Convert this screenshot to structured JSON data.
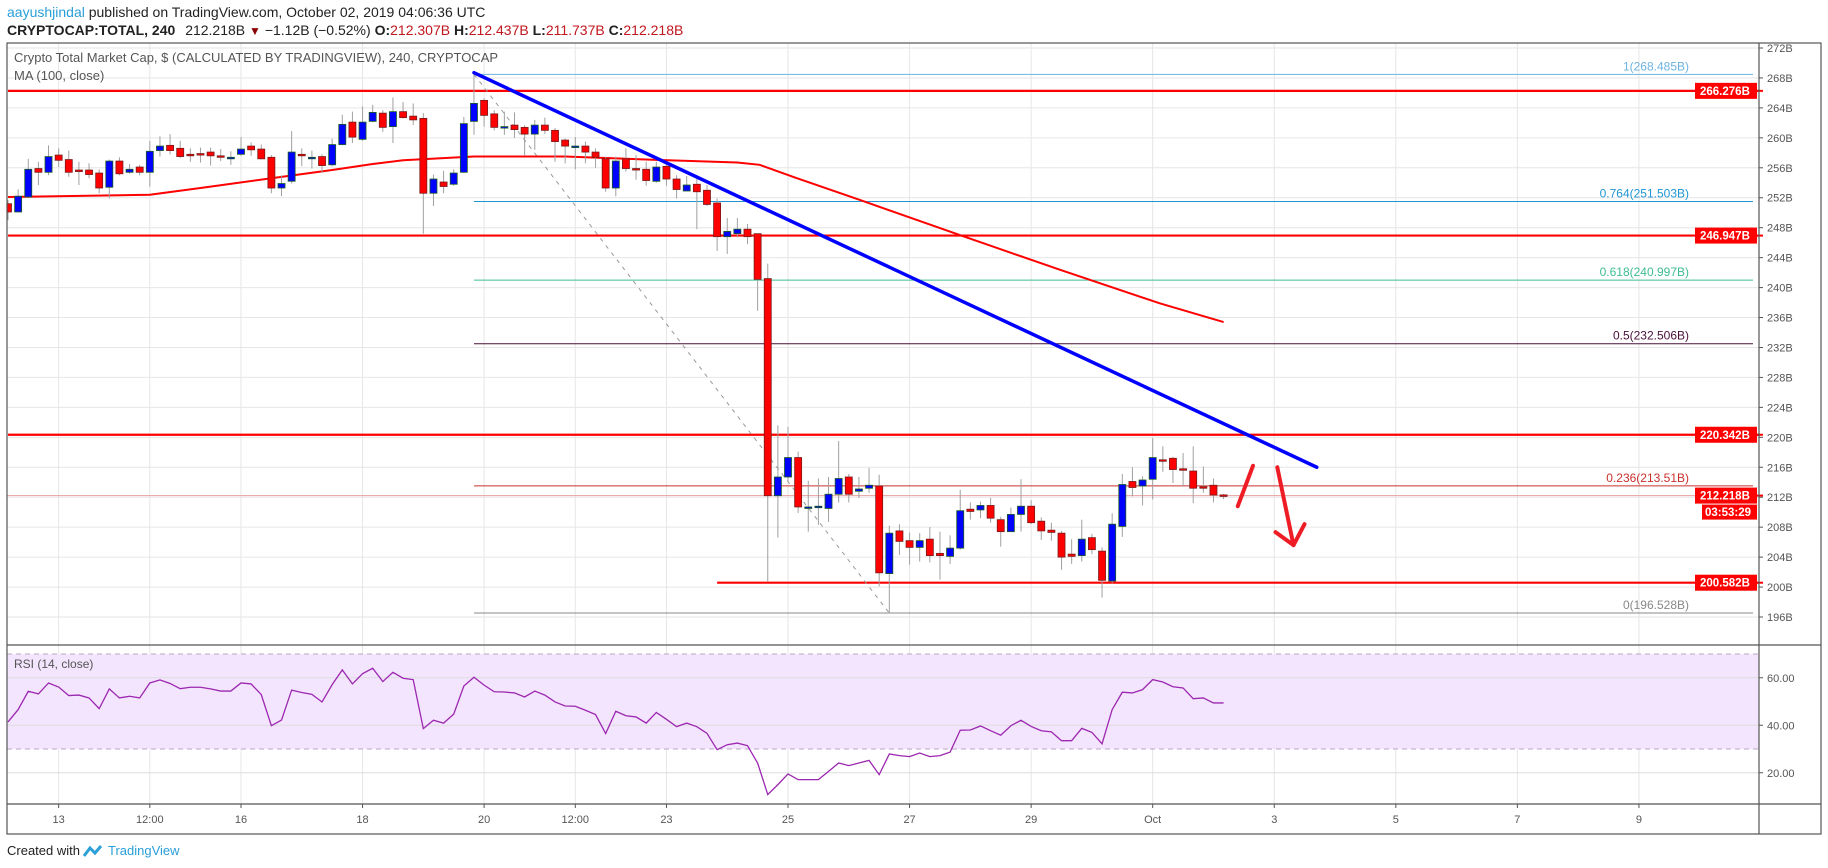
{
  "header": {
    "author": "aayushjindal",
    "published": "published on TradingView.com, October 02, 2019 04:06:36 UTC",
    "symbol": "CRYPTOCAP:TOTAL, 240",
    "last": "212.218B",
    "change": "−1.12B (−0.52%)",
    "o_label": "O:",
    "o": "212.307B",
    "h_label": "H:",
    "h": "212.437B",
    "l_label": "L:",
    "l": "211.737B",
    "c_label": "C:",
    "c": "212.218B"
  },
  "legend": {
    "title": "Crypto Total Market Cap, $ (CALCULATED BY TRADINGVIEW), 240, CRYPTOCAP",
    "ma": "MA (100, close)",
    "rsi": "RSI (14, close)"
  },
  "footer": {
    "created_with": "Created with",
    "brand": "TradingView"
  },
  "colors": {
    "up": "#0000ff",
    "down": "#ff0000",
    "ma": "#ff0000",
    "trend": "#0000ff",
    "rsi": "#9c27b0",
    "level": "#ff0000"
  },
  "chart_data": {
    "type": "candlestick",
    "price_axis": {
      "ticks": [
        272,
        268,
        264,
        260,
        256,
        252,
        248,
        244,
        240,
        236,
        232,
        228,
        224,
        220,
        216,
        212,
        208,
        204,
        200,
        196
      ],
      "suffix": "B"
    },
    "rsi_axis": {
      "ticks": [
        60,
        40,
        20
      ],
      "band": [
        30,
        70
      ]
    },
    "time_labels": [
      {
        "label": "13",
        "bar": 5
      },
      {
        "label": "12:00",
        "bar": 14
      },
      {
        "label": "16",
        "bar": 23
      },
      {
        "label": "18",
        "bar": 35
      },
      {
        "label": "20",
        "bar": 47
      },
      {
        "label": "12:00",
        "bar": 56
      },
      {
        "label": "23",
        "bar": 65
      },
      {
        "label": "25",
        "bar": 77
      },
      {
        "label": "27",
        "bar": 89
      },
      {
        "label": "29",
        "bar": 101
      },
      {
        "label": "Oct",
        "bar": 113
      },
      {
        "label": "3",
        "bar": 125
      },
      {
        "label": "5",
        "bar": 137
      },
      {
        "label": "7",
        "bar": 149
      },
      {
        "label": "9",
        "bar": 161
      }
    ],
    "candles_ohlc": [
      [
        251.2,
        251.7,
        249.0,
        250.1
      ],
      [
        250.1,
        253.1,
        250.1,
        252.2
      ],
      [
        252.1,
        257.2,
        252.1,
        255.8
      ],
      [
        255.9,
        256.8,
        253.7,
        255.4
      ],
      [
        255.4,
        259.0,
        255.0,
        257.5
      ],
      [
        257.7,
        258.6,
        256.1,
        257.0
      ],
      [
        257.1,
        258.3,
        254.8,
        255.4
      ],
      [
        255.7,
        256.8,
        253.7,
        255.5
      ],
      [
        255.7,
        256.6,
        254.6,
        255.1
      ],
      [
        255.3,
        255.8,
        252.6,
        253.3
      ],
      [
        253.4,
        257.1,
        251.9,
        256.9
      ],
      [
        256.9,
        257.4,
        255.0,
        255.2
      ],
      [
        255.4,
        256.5,
        255.2,
        255.8
      ],
      [
        256.1,
        256.4,
        255.0,
        255.4
      ],
      [
        255.4,
        259.6,
        253.5,
        258.2
      ],
      [
        258.3,
        260.2,
        257.5,
        258.9
      ],
      [
        259.0,
        260.5,
        257.8,
        258.3
      ],
      [
        258.6,
        259.6,
        257.3,
        257.5
      ],
      [
        257.8,
        258.6,
        256.8,
        257.7
      ],
      [
        257.9,
        258.7,
        256.7,
        257.8
      ],
      [
        258.1,
        258.7,
        256.3,
        257.6
      ],
      [
        257.6,
        258.5,
        256.9,
        257.4
      ],
      [
        257.4,
        258.2,
        256.4,
        257.4
      ],
      [
        257.8,
        260.1,
        257.6,
        258.5
      ],
      [
        258.9,
        259.4,
        257.6,
        258.4
      ],
      [
        258.5,
        259.1,
        257.1,
        257.2
      ],
      [
        257.4,
        257.7,
        252.6,
        253.3
      ],
      [
        253.3,
        255.0,
        252.2,
        253.9
      ],
      [
        254.2,
        260.9,
        253.9,
        258.1
      ],
      [
        257.8,
        258.6,
        256.2,
        257.7
      ],
      [
        257.4,
        258.3,
        255.9,
        257.4
      ],
      [
        257.5,
        257.8,
        255.3,
        256.3
      ],
      [
        256.4,
        259.9,
        256.2,
        259.1
      ],
      [
        259.1,
        263.1,
        259.0,
        261.8
      ],
      [
        262.1,
        263.5,
        259.3,
        260.1
      ],
      [
        259.8,
        264.2,
        259.6,
        262.1
      ],
      [
        262.2,
        264.4,
        262.1,
        263.4
      ],
      [
        263.3,
        263.7,
        260.8,
        261.4
      ],
      [
        261.5,
        265.4,
        259.3,
        263.5
      ],
      [
        263.5,
        264.8,
        262.6,
        262.7
      ],
      [
        262.9,
        264.6,
        261.7,
        262.4
      ],
      [
        262.6,
        263.3,
        247.2,
        252.6
      ],
      [
        252.6,
        255.1,
        250.9,
        254.5
      ],
      [
        254.1,
        255.6,
        252.6,
        253.5
      ],
      [
        253.8,
        255.8,
        253.6,
        255.3
      ],
      [
        255.4,
        262.8,
        255.3,
        261.9
      ],
      [
        262.2,
        268.485,
        260.4,
        264.6
      ],
      [
        265.0,
        265.3,
        261.5,
        263.0
      ],
      [
        263.2,
        263.7,
        261.0,
        261.4
      ],
      [
        261.5,
        263.5,
        260.4,
        261.5
      ],
      [
        261.7,
        263.4,
        260.0,
        261.1
      ],
      [
        261.4,
        261.7,
        257.6,
        260.5
      ],
      [
        260.5,
        262.4,
        258.4,
        261.7
      ],
      [
        261.7,
        262.7,
        260.5,
        261.0
      ],
      [
        261.0,
        261.3,
        256.8,
        259.5
      ],
      [
        259.7,
        259.9,
        256.6,
        258.9
      ],
      [
        258.9,
        260.1,
        255.8,
        258.9
      ],
      [
        258.9,
        259.5,
        256.6,
        258.1
      ],
      [
        258.1,
        258.6,
        256.0,
        257.4
      ],
      [
        257.2,
        257.5,
        252.8,
        253.3
      ],
      [
        253.3,
        257.5,
        252.2,
        256.9
      ],
      [
        257.2,
        258.6,
        255.5,
        255.9
      ],
      [
        255.9,
        257.7,
        254.4,
        255.7
      ],
      [
        255.8,
        256.8,
        253.6,
        254.3
      ],
      [
        254.2,
        256.8,
        254.0,
        256.1
      ],
      [
        256.2,
        256.6,
        253.6,
        254.5
      ],
      [
        254.5,
        255.0,
        251.9,
        253.1
      ],
      [
        252.9,
        254.9,
        252.9,
        253.7
      ],
      [
        253.8,
        255.0,
        247.8,
        252.8
      ],
      [
        253.0,
        253.7,
        250.9,
        251.1
      ],
      [
        251.3,
        251.9,
        244.9,
        246.8
      ],
      [
        246.8,
        249.3,
        244.5,
        247.5
      ],
      [
        247.2,
        249.3,
        246.7,
        247.8
      ],
      [
        247.8,
        248.5,
        245.8,
        246.8
      ],
      [
        247.2,
        247.2,
        236.9,
        241.1
      ],
      [
        241.2,
        243.2,
        200.7,
        212.2
      ],
      [
        212.2,
        221.6,
        206.6,
        214.7
      ],
      [
        214.7,
        221.4,
        214.1,
        217.3
      ],
      [
        217.3,
        218.1,
        209.9,
        210.7
      ],
      [
        210.6,
        214.2,
        207.4,
        210.7
      ],
      [
        210.8,
        214.5,
        208.3,
        210.8
      ],
      [
        210.5,
        214.7,
        208.7,
        212.4
      ],
      [
        212.4,
        219.5,
        211.3,
        214.5
      ],
      [
        214.7,
        215.1,
        211.3,
        212.4
      ],
      [
        212.8,
        214.7,
        211.9,
        213.1
      ],
      [
        213.2,
        215.9,
        212.6,
        213.6
      ],
      [
        213.5,
        215.0,
        200.1,
        201.9
      ],
      [
        201.8,
        208.2,
        196.528,
        207.2
      ],
      [
        207.5,
        208.4,
        204.3,
        206.1
      ],
      [
        206.2,
        207.3,
        203.0,
        205.3
      ],
      [
        205.3,
        207.2,
        203.4,
        206.2
      ],
      [
        206.4,
        208.0,
        203.3,
        204.2
      ],
      [
        204.5,
        207.4,
        201.0,
        204.2
      ],
      [
        204.1,
        206.9,
        203.1,
        205.2
      ],
      [
        205.2,
        213.0,
        205.0,
        210.2
      ],
      [
        210.4,
        211.3,
        209.0,
        210.1
      ],
      [
        210.3,
        211.4,
        209.2,
        210.9
      ],
      [
        210.9,
        211.9,
        208.6,
        209.2
      ],
      [
        209.0,
        209.4,
        205.4,
        207.4
      ],
      [
        207.4,
        210.6,
        207.4,
        209.7
      ],
      [
        209.7,
        214.4,
        207.4,
        210.8
      ],
      [
        210.8,
        211.6,
        208.4,
        208.6
      ],
      [
        208.8,
        209.3,
        206.3,
        207.5
      ],
      [
        207.6,
        208.6,
        206.2,
        207.3
      ],
      [
        207.2,
        207.5,
        202.3,
        204.0
      ],
      [
        204.4,
        206.4,
        203.1,
        204.1
      ],
      [
        204.2,
        209.0,
        203.4,
        206.4
      ],
      [
        206.6,
        207.1,
        204.4,
        205.0
      ],
      [
        204.8,
        205.3,
        198.6,
        200.9
      ],
      [
        200.8,
        209.85,
        200.5,
        208.4
      ],
      [
        208.1,
        215.1,
        206.7,
        213.7
      ],
      [
        214.1,
        216.0,
        212.1,
        213.3
      ],
      [
        213.5,
        214.8,
        210.9,
        214.3
      ],
      [
        214.4,
        219.9,
        211.7,
        217.3
      ],
      [
        217.0,
        218.8,
        215.4,
        216.9
      ],
      [
        217.2,
        217.4,
        213.9,
        215.7
      ],
      [
        215.8,
        217.9,
        213.4,
        215.6
      ],
      [
        215.5,
        218.8,
        211.2,
        213.2
      ],
      [
        213.4,
        216.1,
        212.6,
        213.3
      ],
      [
        213.6,
        214.5,
        211.3,
        212.3
      ],
      [
        212.307,
        212.437,
        211.737,
        212.218
      ]
    ],
    "ma100": [
      [
        0,
        252.1
      ],
      [
        14,
        252.4
      ],
      [
        19,
        253.3
      ],
      [
        26,
        254.6
      ],
      [
        32,
        255.7
      ],
      [
        36,
        256.5
      ],
      [
        39,
        257.0
      ],
      [
        46,
        257.5
      ],
      [
        55,
        257.5
      ],
      [
        64,
        257.05
      ],
      [
        72,
        256.7
      ],
      [
        74.2,
        256.4
      ],
      [
        77.7,
        254.7
      ],
      [
        84.1,
        251.7
      ],
      [
        94,
        247.0
      ],
      [
        103.9,
        242.35
      ],
      [
        113.7,
        237.9
      ],
      [
        120,
        235.4
      ]
    ],
    "rsi": [
      41.4,
      46.6,
      54.3,
      53.2,
      57.8,
      56.1,
      52.5,
      52.7,
      51.5,
      47.0,
      55.3,
      51.5,
      52.2,
      51.5,
      57.8,
      59.1,
      57.6,
      55.4,
      56.0,
      56.0,
      55.3,
      54.4,
      54.4,
      57.8,
      57.4,
      52.9,
      39.8,
      42.2,
      54.8,
      53.8,
      53.0,
      49.8,
      57.1,
      63.3,
      57.4,
      61.7,
      64.0,
      58.4,
      62.3,
      59.8,
      59.2,
      38.6,
      42.1,
      40.9,
      44.7,
      56.5,
      60.2,
      56.9,
      54.1,
      54.0,
      53.6,
      51.9,
      54.4,
      52.7,
      49.8,
      48.1,
      48.0,
      46.3,
      44.5,
      36.5,
      45.9,
      44.0,
      43.5,
      40.9,
      45.4,
      42.5,
      39.4,
      40.9,
      39.4,
      36.6,
      29.7,
      31.8,
      32.5,
      31.4,
      24.1,
      10.8,
      15.0,
      19.5,
      17.1,
      17.1,
      17.1,
      20.6,
      24.1,
      23.0,
      24.1,
      25.2,
      19.2,
      27.9,
      27.2,
      26.8,
      28.3,
      26.8,
      27.2,
      28.7,
      37.9,
      38.0,
      39.7,
      37.7,
      35.8,
      39.8,
      42.1,
      39.5,
      37.7,
      37.2,
      33.5,
      33.5,
      38.7,
      37.0,
      32.2,
      46.6,
      53.9,
      53.6,
      55.0,
      59.2,
      58.2,
      56.2,
      55.7,
      51.2,
      51.5,
      49.4,
      49.4
    ],
    "trendline": [
      [
        46,
        268.7
      ],
      [
        129.2,
        216.0
      ]
    ],
    "fib_diagonal": [
      [
        46,
        268.485
      ],
      [
        87,
        196.528
      ]
    ],
    "fib_start_bar": 46,
    "fib_levels": [
      {
        "label": "1(268.485B)",
        "value": 268.485,
        "color": "#6db3e0"
      },
      {
        "label": "0.764(251.503B)",
        "value": 251.503,
        "color": "#2196d3"
      },
      {
        "label": "0.618(240.997B)",
        "value": 240.997,
        "color": "#3dbd8f"
      },
      {
        "label": "0.5(232.506B)",
        "value": 232.506,
        "color": "#4a1038"
      },
      {
        "label": "0.236(213.51B)",
        "value": 213.51,
        "color": "#c9302c"
      },
      {
        "label": "0(196.528B)",
        "value": 196.528,
        "color": "#888888"
      }
    ],
    "horizontal_levels": [
      {
        "label": "266.276B",
        "value": 266.276,
        "start_bar": 0
      },
      {
        "label": "246.947B",
        "value": 246.947,
        "start_bar": 0
      },
      {
        "label": "220.342B",
        "value": 220.342,
        "start_bar": 0
      },
      {
        "label": "200.582B",
        "value": 200.582,
        "start_bar": 70
      }
    ],
    "last_price": {
      "label": "212.218B",
      "value": 212.218,
      "countdown": "03:53:29"
    },
    "annotations": {
      "up_stroke": [
        [
          121.4,
          210.8
        ],
        [
          122.9,
          216.2
        ]
      ],
      "down_arrow": [
        [
          125.3,
          216.0
        ],
        [
          126.9,
          205.6
        ]
      ]
    }
  }
}
